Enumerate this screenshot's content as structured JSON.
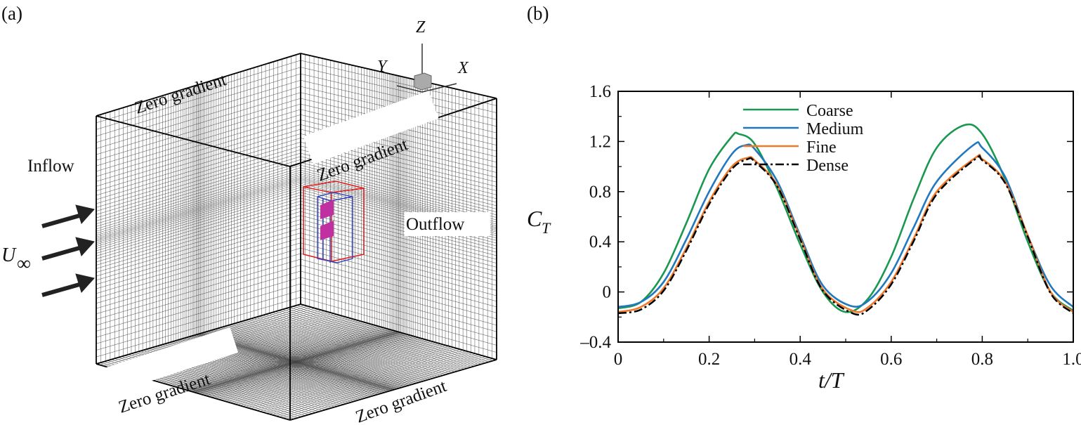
{
  "panel_a": {
    "label": "(a)",
    "labels": {
      "top": "Zero gradient",
      "back": "Zero gradient",
      "bottom_front": "Zero gradient",
      "bottom_right": "Zero gradient",
      "inflow": "Inflow",
      "outflow": "Outflow",
      "velocity": "U",
      "velocity_sub": "∞"
    },
    "axes": {
      "z": "Z",
      "y": "Y",
      "x": "X"
    },
    "colors": {
      "outer_box": "#e02020",
      "inner_box": "#3040c0",
      "body": "#c030a0",
      "mesh": "#222222"
    }
  },
  "panel_b": {
    "label": "(b)"
  },
  "chart_data": {
    "type": "line",
    "title": "",
    "xlabel": "t/T",
    "ylabel": "C_T",
    "ylabel_main": "C",
    "ylabel_sub": "T",
    "xlim": [
      0,
      1.0
    ],
    "ylim": [
      -0.4,
      1.6
    ],
    "xticks": [
      "0",
      "0.2",
      "0.4",
      "0.6",
      "0.8",
      "1.0"
    ],
    "xtick_values": [
      0,
      0.2,
      0.4,
      0.6,
      0.8,
      1.0
    ],
    "yticks": [
      "–0.4",
      "0",
      "0.4",
      "0.8",
      "1.2",
      "1.6"
    ],
    "ytick_values": [
      -0.4,
      0,
      0.4,
      0.8,
      1.2,
      1.6
    ],
    "grid": false,
    "legend_position": "top-center",
    "series": [
      {
        "name": "Coarse",
        "color": "#1a9850",
        "dash": "solid",
        "x": [
          0,
          0.05,
          0.1,
          0.15,
          0.2,
          0.25,
          0.265,
          0.3,
          0.35,
          0.4,
          0.45,
          0.5,
          0.55,
          0.6,
          0.65,
          0.7,
          0.76,
          0.8,
          0.85,
          0.9,
          0.95,
          1.0
        ],
        "y": [
          -0.13,
          -0.08,
          0.15,
          0.55,
          0.98,
          1.24,
          1.26,
          1.18,
          0.82,
          0.38,
          0.0,
          -0.16,
          -0.05,
          0.28,
          0.75,
          1.15,
          1.33,
          1.26,
          0.9,
          0.4,
          0.0,
          -0.15
        ]
      },
      {
        "name": "Medium",
        "color": "#1f78c0",
        "dash": "solid",
        "x": [
          0,
          0.05,
          0.1,
          0.15,
          0.2,
          0.25,
          0.28,
          0.3,
          0.35,
          0.4,
          0.45,
          0.51,
          0.55,
          0.6,
          0.65,
          0.7,
          0.78,
          0.8,
          0.85,
          0.9,
          0.95,
          1.0
        ],
        "y": [
          -0.12,
          -0.08,
          0.08,
          0.42,
          0.8,
          1.1,
          1.17,
          1.14,
          0.88,
          0.45,
          0.05,
          -0.11,
          -0.07,
          0.15,
          0.52,
          0.88,
          1.17,
          1.15,
          0.92,
          0.45,
          0.05,
          -0.12
        ]
      },
      {
        "name": "Fine",
        "color": "#f07828",
        "dash": "solid",
        "x": [
          0,
          0.05,
          0.1,
          0.15,
          0.2,
          0.25,
          0.285,
          0.3,
          0.35,
          0.4,
          0.45,
          0.515,
          0.55,
          0.6,
          0.65,
          0.7,
          0.785,
          0.8,
          0.85,
          0.9,
          0.95,
          1.0
        ],
        "y": [
          -0.16,
          -0.12,
          0.03,
          0.35,
          0.72,
          1.0,
          1.07,
          1.05,
          0.85,
          0.43,
          0.02,
          -0.15,
          -0.12,
          0.08,
          0.43,
          0.8,
          1.07,
          1.06,
          0.88,
          0.45,
          0.0,
          -0.16
        ]
      },
      {
        "name": "Dense",
        "color": "#000000",
        "dash": "dashdot",
        "x": [
          0,
          0.05,
          0.1,
          0.15,
          0.2,
          0.25,
          0.285,
          0.3,
          0.35,
          0.4,
          0.45,
          0.515,
          0.55,
          0.6,
          0.65,
          0.7,
          0.785,
          0.8,
          0.85,
          0.9,
          0.95,
          1.0
        ],
        "y": [
          -0.17,
          -0.14,
          0.01,
          0.33,
          0.7,
          0.98,
          1.06,
          1.04,
          0.84,
          0.42,
          0.01,
          -0.17,
          -0.14,
          0.06,
          0.41,
          0.78,
          1.06,
          1.05,
          0.87,
          0.44,
          -0.01,
          -0.17
        ]
      }
    ]
  }
}
